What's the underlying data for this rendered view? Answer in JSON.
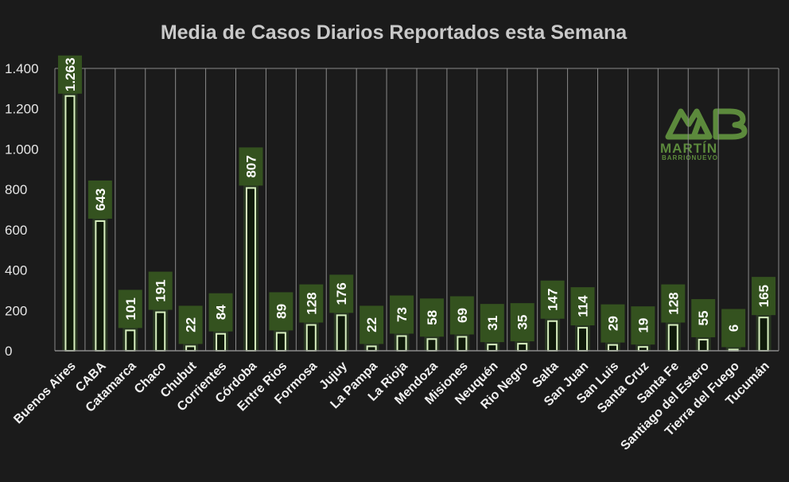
{
  "chart_data": {
    "type": "bar",
    "title": "Media de Casos Diarios Reportados esta Semana",
    "xlabel": "",
    "ylabel": "",
    "ylim": [
      0,
      1400
    ],
    "yticks": [
      0,
      200,
      400,
      600,
      800,
      1000,
      1200,
      1400
    ],
    "ytick_labels": [
      "0",
      "200",
      "400",
      "600",
      "800",
      "1.000",
      "1.200",
      "1.400"
    ],
    "grid": "vertical",
    "legend": "none",
    "categories": [
      "Buenos Aires",
      "CABA",
      "Catamarca",
      "Chaco",
      "Chubut",
      "Corrientes",
      "Córdoba",
      "Entre Rios",
      "Formosa",
      "Jujuy",
      "La Pampa",
      "La Rioja",
      "Mendoza",
      "Misiones",
      "Neuquén",
      "Rio Negro",
      "Salta",
      "San Juan",
      "San Luis",
      "Santa Cruz",
      "Santa Fe",
      "Santiago del Estero",
      "Tierra del Fuego",
      "Tucumán"
    ],
    "values": [
      1263,
      643,
      101,
      191,
      22,
      84,
      807,
      89,
      128,
      176,
      22,
      73,
      58,
      69,
      31,
      35,
      147,
      114,
      29,
      19,
      128,
      55,
      6,
      165
    ],
    "value_labels": [
      "1.263",
      "643",
      "101",
      "191",
      "22",
      "84",
      "807",
      "89",
      "128",
      "176",
      "22",
      "73",
      "58",
      "69",
      "31",
      "35",
      "147",
      "114",
      "29",
      "19",
      "128",
      "55",
      "6",
      "165"
    ]
  },
  "logo": {
    "name": "MARTÍN",
    "surname": "BARRIONUEVO"
  },
  "colors": {
    "background": "#1b1b1b",
    "bar_outline": "#d8f0c0",
    "bar_fill": "#0f1a0a",
    "bar_glow": "#2a3b22",
    "label_box": "#34521f",
    "grid": "#8a8a8a",
    "logo": "#5c8a3c"
  }
}
